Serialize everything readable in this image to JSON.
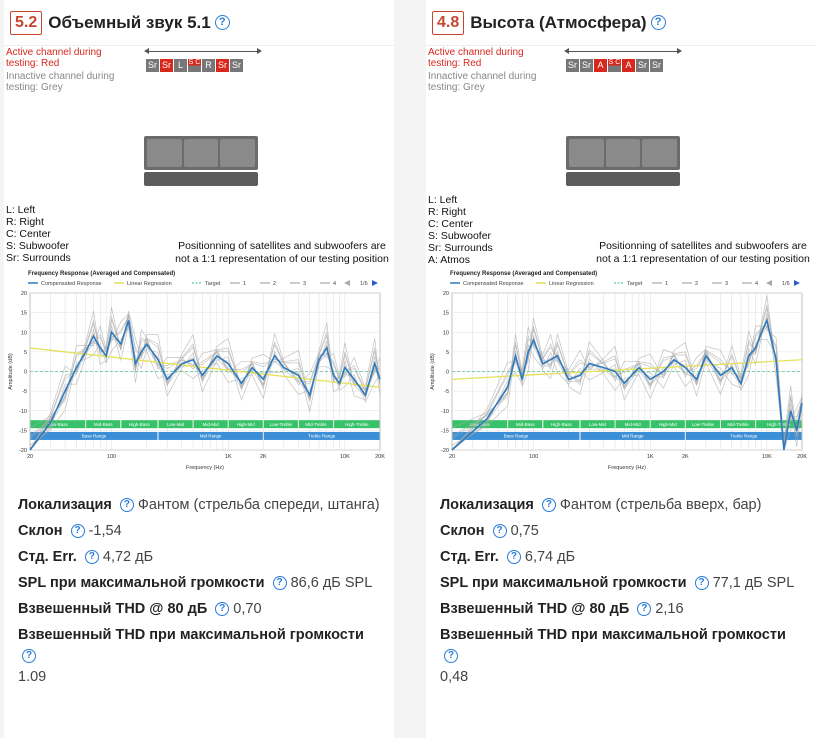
{
  "colors": {
    "accent": "#c7462f",
    "link": "#2a7bd8",
    "active_channel": "#d8271d",
    "inactive_channel": "#777777",
    "curve": "#2e7bbf",
    "regression": "#e6e05a",
    "target": "#7fd0a0",
    "band_green": "#37c26a",
    "band_blue": "#3b8fd6"
  },
  "shared": {
    "legend_red": "Active channel during testing: Red",
    "legend_grey": "Innactive channel during testing: Grey",
    "note": "Positionning of satellites and subwoofers are not a 1:1 representation of our testing position",
    "chart": {
      "title": "Frequency Response (Averaged and Compensated)",
      "legend_labels": [
        "Compensated Response",
        "Linear Regression",
        "Target",
        "1",
        "2",
        "3",
        "4"
      ],
      "page_indicator": "1/6",
      "ylabel": "Amplitude (dB)",
      "xlabel": "Frequency (Hz)",
      "y_ticks": [
        "20",
        "15",
        "10",
        "5",
        "0",
        "-5",
        "-10",
        "-15",
        "-20"
      ],
      "x_ticks": [
        "20",
        "100",
        "1K",
        "2K",
        "10K",
        "20K"
      ],
      "bands_top": [
        "Low-Bass",
        "Mid-Bass",
        "High-Bass",
        "Low-Mid",
        "Mid-Mid",
        "High-Mid",
        "Low-Treble",
        "Mid-Treble",
        "High-Treble"
      ],
      "bands_bottom": [
        "Bass Range",
        "Mid Range",
        "Treble Range"
      ]
    }
  },
  "cards": [
    {
      "score": "5.2",
      "title": "Объемный звук 5.1",
      "speakers": [
        {
          "label": "Sr",
          "state": "grey"
        },
        {
          "label": "Sr",
          "state": "red"
        },
        {
          "label": "L",
          "state": "grey"
        },
        {
          "label": "S C",
          "state": "half"
        },
        {
          "label": "R",
          "state": "grey"
        },
        {
          "label": "Sr",
          "state": "red"
        },
        {
          "label": "Sr",
          "state": "grey"
        }
      ],
      "abbreviations": [
        "L: Left",
        "R: Right",
        "C: Center",
        "S: Subwoofer",
        "Sr: Surrounds"
      ],
      "chart_data": {
        "type": "line",
        "x_scale": "log",
        "xlim": [
          20,
          20000
        ],
        "ylim": [
          -20,
          20
        ],
        "series": [
          {
            "name": "Compensated Response",
            "x": [
              20,
              30,
              40,
              50,
              60,
              70,
              80,
              90,
              100,
              120,
              140,
              160,
              180,
              200,
              250,
              300,
              400,
              500,
              600,
              800,
              1000,
              1300,
              1600,
              2000,
              2500,
              3000,
              4000,
              5000,
              6000,
              7000,
              8000,
              9000,
              10000,
              12000,
              15000,
              18000,
              20000
            ],
            "y": [
              -20,
              -13,
              -5,
              1,
              5,
              9,
              6,
              4,
              10,
              7,
              13,
              2,
              5,
              7,
              3,
              -2,
              2,
              3,
              -1,
              4,
              2,
              -3,
              1,
              -2,
              4,
              1,
              -1,
              -6,
              3,
              6,
              -1,
              -3,
              1,
              -2,
              -6,
              2,
              -2
            ]
          },
          {
            "name": "Linear Regression",
            "x": [
              20,
              20000
            ],
            "y": [
              6,
              -4
            ]
          },
          {
            "name": "Target",
            "x": [
              20,
              20000
            ],
            "y": [
              0,
              0
            ]
          }
        ]
      },
      "metrics": [
        {
          "label": "Локализация",
          "value": "Фантом (стрельба спереди, штанга)"
        },
        {
          "label": "Склон",
          "value": "-1,54"
        },
        {
          "label": "Стд. Err.",
          "value": "4,72 дБ"
        },
        {
          "label": "SPL при максимальной громкости",
          "value": "86,6 дБ SPL"
        },
        {
          "label": "Взвешенный THD @ 80 дБ",
          "value": "0,70"
        },
        {
          "label": "Взвешенный THD при максимальной громкости",
          "value": "1.09"
        }
      ]
    },
    {
      "score": "4.8",
      "title": "Высота (Атмосфера)",
      "speakers": [
        {
          "label": "Sr",
          "state": "grey"
        },
        {
          "label": "Sr",
          "state": "grey"
        },
        {
          "label": "A",
          "state": "red"
        },
        {
          "label": "S C",
          "state": "half"
        },
        {
          "label": "A",
          "state": "red"
        },
        {
          "label": "Sr",
          "state": "grey"
        },
        {
          "label": "Sr",
          "state": "grey"
        }
      ],
      "abbreviations": [
        "L: Left",
        "R: Right",
        "C: Center",
        "S: Subwoofer",
        "Sr: Surrounds",
        "A: Atmos"
      ],
      "chart_data": {
        "type": "line",
        "x_scale": "log",
        "xlim": [
          20,
          20000
        ],
        "ylim": [
          -20,
          20
        ],
        "series": [
          {
            "name": "Compensated Response",
            "x": [
              20,
              40,
              60,
              70,
              80,
              90,
              100,
              120,
              140,
              160,
              200,
              250,
              300,
              400,
              500,
              600,
              800,
              1000,
              1300,
              1600,
              2000,
              2500,
              3000,
              4000,
              5000,
              6000,
              7000,
              8000,
              9000,
              10000,
              12000,
              14000,
              16000,
              18000,
              20000
            ],
            "y": [
              -20,
              -12,
              -4,
              4,
              -2,
              5,
              8,
              2,
              3,
              4,
              -2,
              -1,
              2,
              1,
              0,
              -3,
              1,
              -2,
              0,
              3,
              1,
              -2,
              4,
              -1,
              1,
              -3,
              4,
              6,
              10,
              13,
              3,
              -20,
              -10,
              -15,
              -8
            ]
          },
          {
            "name": "Linear Regression",
            "x": [
              20,
              20000
            ],
            "y": [
              -2,
              3
            ]
          },
          {
            "name": "Target",
            "x": [
              20,
              20000
            ],
            "y": [
              0,
              0
            ]
          }
        ]
      },
      "metrics": [
        {
          "label": "Локализация",
          "value": "Фантом (стрельба вверх, бар)"
        },
        {
          "label": "Склон",
          "value": "0,75"
        },
        {
          "label": "Стд. Err.",
          "value": "6,74 дБ"
        },
        {
          "label": "SPL при максимальной громкости",
          "value": "77,1 дБ SPL"
        },
        {
          "label": "Взвешенный THD @ 80 дБ",
          "value": "2,16"
        },
        {
          "label": "Взвешенный THD при максимальной громкости",
          "value": "0,48"
        }
      ]
    }
  ]
}
